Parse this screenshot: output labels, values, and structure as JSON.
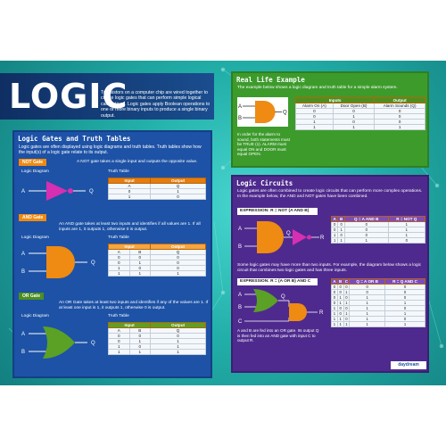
{
  "title": "LOGIC",
  "intro": "Transistors on a computer chip are wired together to create logic gates that can perform simple logical calculations. Logic gates apply Boolean operations to one or more binary inputs to produce a single binary output.",
  "gates_section": {
    "title": "Logic Gates and Truth Tables",
    "intro": "Logic gates are often displayed using logic diagrams and truth tables. Truth tables show how the input(s) of a logic gate relate to its output.",
    "diagram_label": "Logic Diagram",
    "table_label": "Truth Table",
    "not": {
      "tag": "NOT Gate",
      "desc": "A NOT gate takes a single input and outputs the opposite value.",
      "input_a": "A",
      "output_q": "Q",
      "headers": [
        "Input",
        "Output"
      ],
      "sub": [
        "A",
        "Q"
      ],
      "rows": [
        [
          "0",
          "1"
        ],
        [
          "1",
          "0"
        ]
      ]
    },
    "and": {
      "tag": "AND Gate",
      "desc": "An AND gate takes at least two inputs and identifies if all values are 1. If all inputs are 1, it outputs 1, otherwise 0 is output.",
      "input_a": "A",
      "input_b": "B",
      "output_q": "Q",
      "headers": [
        "Input",
        "Output"
      ],
      "sub": [
        "A",
        "B",
        "Q"
      ],
      "rows": [
        [
          "0",
          "0",
          "0"
        ],
        [
          "0",
          "1",
          "0"
        ],
        [
          "1",
          "0",
          "0"
        ],
        [
          "1",
          "1",
          "1"
        ]
      ]
    },
    "or": {
      "tag": "OR Gate",
      "desc": "An OR Gate takes at least two inputs and identifies if any of the values are 1. If at least one input is 1, it outputs 1, otherwise 0 is output.",
      "input_a": "A",
      "input_b": "B",
      "output_q": "Q",
      "headers": [
        "Input",
        "Output"
      ],
      "sub": [
        "A",
        "B",
        "Q"
      ],
      "rows": [
        [
          "0",
          "0",
          "0"
        ],
        [
          "0",
          "1",
          "1"
        ],
        [
          "1",
          "0",
          "1"
        ],
        [
          "1",
          "1",
          "1"
        ]
      ]
    }
  },
  "real_life": {
    "title": "Real Life Example",
    "intro": "The example below shows a logic diagram and truth table for a simple alarm system.",
    "input_a": "A",
    "input_b": "B",
    "output_q": "Q",
    "top_headers": [
      "Inputs",
      "Output"
    ],
    "headers": [
      "Alarm On (A)",
      "Door Open (B)",
      "Alarm Sounds (Q)"
    ],
    "rows": [
      [
        "0",
        "0",
        "0"
      ],
      [
        "0",
        "1",
        "0"
      ],
      [
        "1",
        "0",
        "0"
      ],
      [
        "1",
        "1",
        "1"
      ]
    ],
    "note": "In order for the alarm to sound, both statements must be TRUE (1). ALARM must equal ON and DOOR must equal OPEN."
  },
  "circuits": {
    "title": "Logic Circuits",
    "intro": "Logic gates are often combined to create logic circuits that can perform more complex operations. In the example below, the AND and NOT gates have been combined.",
    "expr1": "EXPRESSION: R = NOT (A AND B)",
    "t1_headers": [
      "A",
      "B",
      "Q = A AND B",
      "R = NOT Q"
    ],
    "t1_rows": [
      [
        "0",
        "0",
        "0",
        "1"
      ],
      [
        "0",
        "1",
        "0",
        "1"
      ],
      [
        "1",
        "0",
        "0",
        "1"
      ],
      [
        "1",
        "1",
        "1",
        "0"
      ]
    ],
    "mid": "Some logic gates may have more than two inputs. For example, the diagram below shows a logic circuit that combines two logic gates and has three inputs.",
    "expr2": "EXPRESSION: R = (A OR B) AND C",
    "t2_headers": [
      "A",
      "B",
      "C",
      "Q = A OR B",
      "R = Q AND C"
    ],
    "t2_rows": [
      [
        "0",
        "0",
        "0",
        "0",
        "0"
      ],
      [
        "0",
        "0",
        "1",
        "0",
        "0"
      ],
      [
        "0",
        "1",
        "0",
        "1",
        "0"
      ],
      [
        "0",
        "1",
        "1",
        "1",
        "1"
      ],
      [
        "1",
        "0",
        "0",
        "1",
        "0"
      ],
      [
        "1",
        "0",
        "1",
        "1",
        "1"
      ],
      [
        "1",
        "1",
        "0",
        "1",
        "0"
      ],
      [
        "1",
        "1",
        "1",
        "1",
        "1"
      ]
    ],
    "note": "A and B are fed into an OR gate. Its output Q is then fed into an AND gate with input C to output R.",
    "labels": {
      "a": "A",
      "b": "B",
      "c": "C",
      "q": "Q",
      "r": "R"
    }
  },
  "brand": "daydream",
  "colors": {
    "teal": "#22aea8",
    "blue": "#1d52a6",
    "green": "#3d9b2c",
    "purple": "#4e2a8e",
    "orange": "#ef8a12",
    "pink": "#d62fb1"
  }
}
